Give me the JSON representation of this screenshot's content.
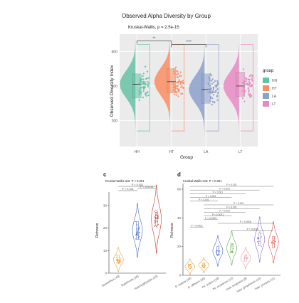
{
  "chart_data": [
    {
      "type": "violin",
      "title": "Observed Alpha Diversity by Group",
      "subtitle": "Kruskal-Wallis, p = 2.5e-15",
      "xlabel": "Group",
      "ylabel": "Observed Diversity Index",
      "categories": [
        "HH",
        "HT",
        "LA",
        "LT"
      ],
      "yticks": [
        200,
        400,
        600
      ],
      "ylim": [
        50,
        700
      ],
      "legend": {
        "title": "group",
        "position": "right",
        "items": [
          "HH",
          "HT",
          "LA",
          "LT"
        ]
      },
      "colors": {
        "HH": "#66c2a5",
        "HT": "#fc8d62",
        "LA": "#8da0cb",
        "LT": "#e78ac3"
      },
      "medians": [
        410,
        425,
        380,
        400
      ],
      "q1": [
        330,
        360,
        300,
        340
      ],
      "q3": [
        470,
        500,
        470,
        480
      ],
      "brackets": [
        {
          "from": "HH",
          "to": "HT",
          "label": "**"
        },
        {
          "from": "HT",
          "to": "LA",
          "label": "****"
        }
      ]
    },
    {
      "type": "violin",
      "panel": "c",
      "test_label": "Kruskal-Wallis test: P < 0.001",
      "ylabel": "Richness",
      "categories": [
        "Janeanthus (40)",
        "Nyarthonia (30)",
        "Haemogthysidia (20)"
      ],
      "yticks": [
        0,
        10,
        20,
        30
      ],
      "ylim": [
        0,
        36
      ],
      "colors": [
        "#e9a03b",
        "#4a69c4",
        "#c0392b"
      ],
      "medians": [
        6,
        19,
        24
      ],
      "q1": [
        4.5,
        15,
        21
      ],
      "q3": [
        8,
        23,
        27
      ],
      "comparisons": [
        "P < 0.001",
        "P < 0.001",
        "P = 0.0014"
      ]
    },
    {
      "type": "violin",
      "panel": "d",
      "test_label": "Kruskal-Wallis test: P < 0.001",
      "ylabel": "Richness",
      "categories": [
        "D. leafula (30)",
        "D. affinium (30)",
        "Pil. suttoni (18)",
        "Pil. ecuaense (12)",
        "Haw. longinaris (8)",
        "Haw. gingofensis (15)",
        "Haw. piscaria (11)"
      ],
      "yticks": [
        0,
        20,
        40,
        60
      ],
      "ylim": [
        0,
        64
      ],
      "colors": [
        "#e9a03b",
        "#e9a03b",
        "#4a69c4",
        "#6aa84f",
        "#e8a0b0",
        "#8e6bbd",
        "#d9534f"
      ],
      "medians": [
        6,
        7,
        17,
        19,
        12,
        25,
        23
      ],
      "comparisons": [
        "P < 0.001",
        "P < 0.001",
        "P < 0.001",
        "P < 0.001",
        "P < 0.001",
        "P < 0.001",
        "P < 0.001",
        "P < 0.001",
        "P = 0.0031",
        "P = 0.0019",
        "P = 0.0006",
        "P = 0.0021",
        "P = 0.0010"
      ]
    }
  ]
}
